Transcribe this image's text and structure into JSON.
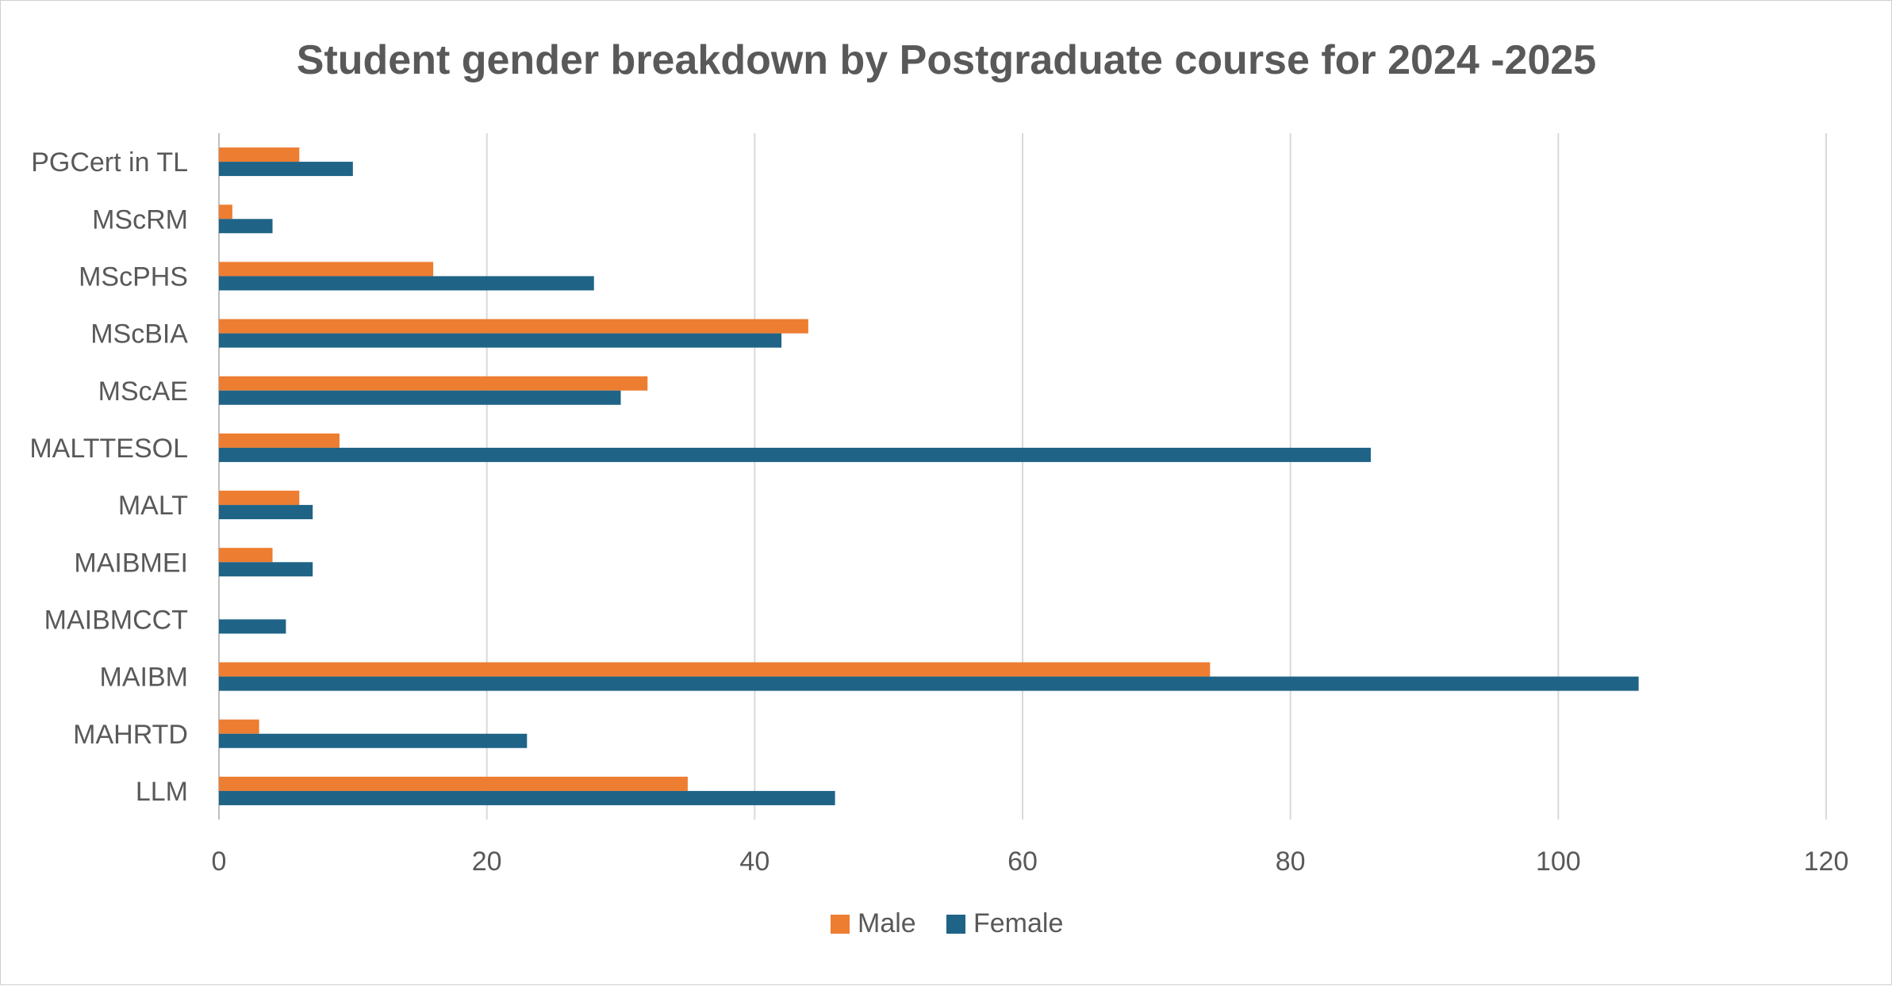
{
  "chart_data": {
    "type": "bar",
    "orientation": "horizontal",
    "title": "Student gender breakdown by Postgraduate course for 2024 -2025",
    "xlabel": "",
    "ylabel": "",
    "xlim": [
      0,
      120
    ],
    "x_ticks": [
      0,
      20,
      40,
      60,
      80,
      100,
      120
    ],
    "x_tick_labels": [
      "0",
      "20",
      "40",
      "60",
      "80",
      "100",
      "120"
    ],
    "grid": true,
    "legend_position": "bottom",
    "categories": [
      "PGCert in TL",
      "MScRM",
      "MScPHS",
      "MScBIA",
      "MScAE",
      "MALTTESOL",
      "MALT",
      "MAIBMEI",
      "MAIBMCCT",
      "MAIBM",
      "MAHRTD",
      "LLM"
    ],
    "series": [
      {
        "name": "Male",
        "color": "#ED7D31",
        "values": [
          6,
          1,
          16,
          44,
          32,
          9,
          6,
          4,
          0,
          74,
          3,
          35
        ]
      },
      {
        "name": "Female",
        "color": "#1F6387",
        "values": [
          10,
          4,
          28,
          42,
          30,
          86,
          7,
          7,
          5,
          106,
          23,
          46
        ]
      }
    ]
  }
}
